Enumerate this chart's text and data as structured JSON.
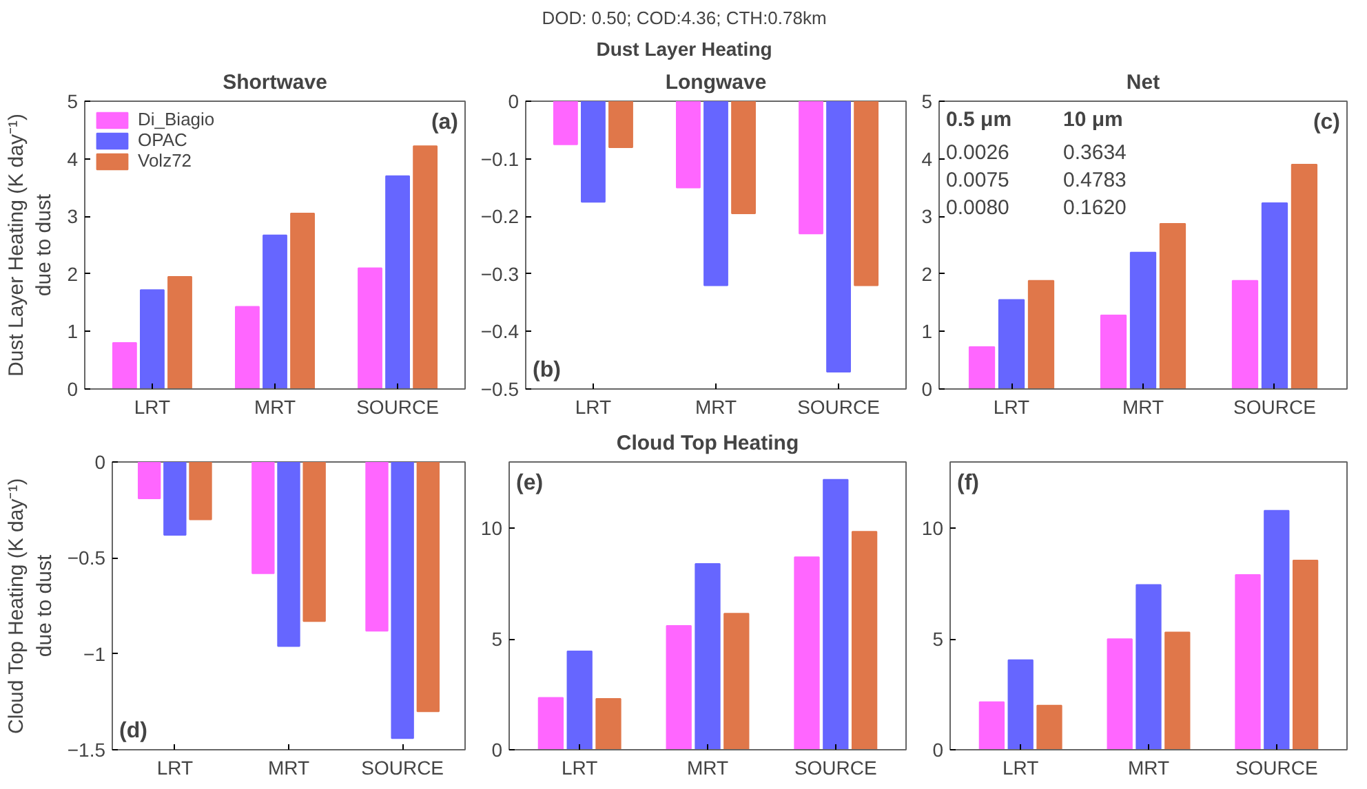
{
  "chart_data": [
    {
      "type": "other",
      "title": "DOD: 0.50; COD:4.36; CTH:0.78km",
      "subtitle": "Dust Layer Heating"
    },
    {
      "type": "bar",
      "title": "Shortwave",
      "ylabel": "Dust Layer Heating (K day⁻¹)\ndue to dust",
      "categories": [
        "LRT",
        "MRT",
        "SOURCE"
      ],
      "ylim": [
        0,
        5
      ],
      "yticks": [
        0,
        1,
        2,
        3,
        4,
        5
      ],
      "legend": "top left",
      "annotations": [
        "(a)"
      ],
      "series": [
        {
          "name": "Di_Biagio",
          "color": "#ff66ff",
          "values": [
            0.8,
            1.43,
            2.1
          ]
        },
        {
          "name": "OPAC",
          "color": "#6666ff",
          "values": [
            1.72,
            2.67,
            3.7
          ]
        },
        {
          "name": "Volz72",
          "color": "#e0774a",
          "values": [
            1.95,
            3.05,
            4.22
          ]
        }
      ]
    },
    {
      "type": "bar",
      "title": "Longwave",
      "categories": [
        "LRT",
        "MRT",
        "SOURCE"
      ],
      "ylim": [
        -0.5,
        0
      ],
      "yticks": [
        -0.5,
        -0.4,
        -0.3,
        -0.2,
        -0.1,
        0
      ],
      "annotations": [
        "(b)"
      ],
      "series": [
        {
          "color": "#ff66ff",
          "values": [
            -0.075,
            -0.15,
            -0.23
          ]
        },
        {
          "color": "#6666ff",
          "values": [
            -0.175,
            -0.32,
            -0.47
          ]
        },
        {
          "color": "#e0774a",
          "values": [
            -0.08,
            -0.195,
            -0.32
          ]
        }
      ]
    },
    {
      "type": "bar",
      "title": "Net",
      "categories": [
        "LRT",
        "MRT",
        "SOURCE"
      ],
      "ylim": [
        0,
        5
      ],
      "yticks": [
        0,
        1,
        2,
        3,
        4,
        5
      ],
      "annotations": [
        "(c)",
        "0.5 μm",
        "10 μm",
        "0.0026",
        "0.3634",
        "0.0075",
        "0.4783",
        "0.0080",
        "0.1620"
      ],
      "series": [
        {
          "color": "#ff66ff",
          "values": [
            0.73,
            1.28,
            1.88
          ]
        },
        {
          "color": "#6666ff",
          "values": [
            1.55,
            2.37,
            3.23
          ]
        },
        {
          "color": "#e0774a",
          "values": [
            1.88,
            2.87,
            3.9
          ]
        }
      ]
    },
    {
      "type": "bar",
      "ylabel": "Cloud Top Heating (K day⁻¹)\ndue to dust",
      "categories": [
        "LRT",
        "MRT",
        "SOURCE"
      ],
      "ylim": [
        -1.5,
        0
      ],
      "yticks": [
        -1.5,
        -1,
        -0.5,
        0
      ],
      "annotations": [
        "(d)"
      ],
      "series": [
        {
          "color": "#ff66ff",
          "values": [
            -0.19,
            -0.58,
            -0.88
          ]
        },
        {
          "color": "#6666ff",
          "values": [
            -0.38,
            -0.96,
            -1.44
          ]
        },
        {
          "color": "#e0774a",
          "values": [
            -0.3,
            -0.83,
            -1.3
          ]
        }
      ]
    },
    {
      "type": "bar",
      "title": "Cloud Top Heating",
      "categories": [
        "LRT",
        "MRT",
        "SOURCE"
      ],
      "ylim": [
        0,
        13
      ],
      "yticks": [
        0,
        5,
        10
      ],
      "annotations": [
        "(e)"
      ],
      "series": [
        {
          "color": "#ff66ff",
          "values": [
            2.35,
            5.6,
            8.7
          ]
        },
        {
          "color": "#6666ff",
          "values": [
            4.45,
            8.4,
            12.2
          ]
        },
        {
          "color": "#e0774a",
          "values": [
            2.3,
            6.15,
            9.85
          ]
        }
      ]
    },
    {
      "type": "bar",
      "categories": [
        "LRT",
        "MRT",
        "SOURCE"
      ],
      "ylim": [
        0,
        13
      ],
      "yticks": [
        0,
        5,
        10
      ],
      "annotations": [
        "(f)"
      ],
      "series": [
        {
          "color": "#ff66ff",
          "values": [
            2.15,
            5.0,
            7.9
          ]
        },
        {
          "color": "#6666ff",
          "values": [
            4.05,
            7.45,
            10.8
          ]
        },
        {
          "color": "#e0774a",
          "values": [
            2.0,
            5.3,
            8.55
          ]
        }
      ]
    }
  ]
}
